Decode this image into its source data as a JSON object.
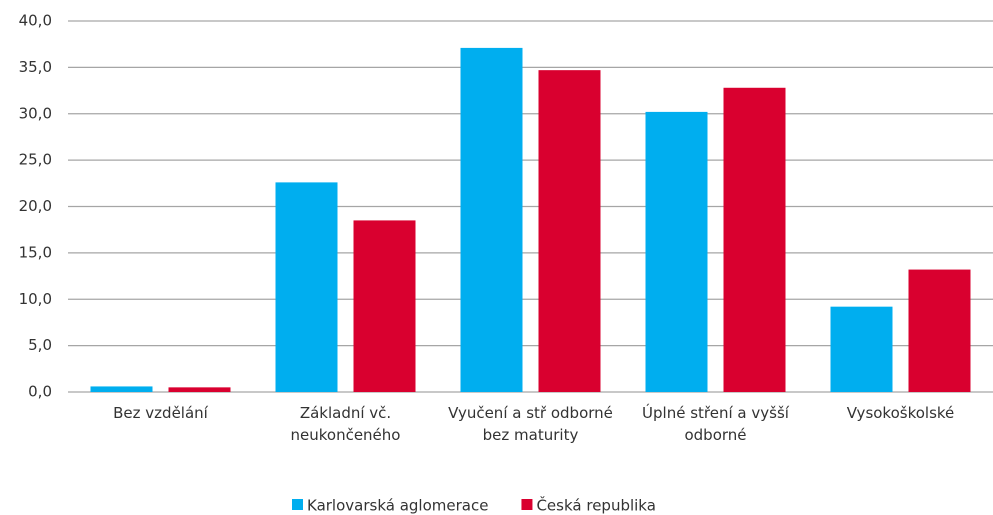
{
  "chart_data": {
    "type": "bar",
    "categories": [
      "Bez vzdělání",
      "Základní vč. neukončeného",
      "Vyučení a stř odborné bez maturity",
      "Úplné stření a vyšší odborné",
      "Vysokoškolské"
    ],
    "series": [
      {
        "name": "Karlovarská aglomerace",
        "color": "#00aeef",
        "values": [
          0.6,
          22.6,
          37.1,
          30.2,
          9.2
        ]
      },
      {
        "name": "Česká republika",
        "color": "#d9002f",
        "values": [
          0.5,
          18.5,
          34.7,
          32.8,
          13.2
        ]
      }
    ],
    "ylim": [
      0,
      40
    ],
    "yticks": [
      {
        "value": 0,
        "label": "0,0"
      },
      {
        "value": 5,
        "label": "5,0"
      },
      {
        "value": 10,
        "label": "10,0"
      },
      {
        "value": 15,
        "label": "15,0"
      },
      {
        "value": 20,
        "label": "20,0"
      },
      {
        "value": 25,
        "label": "25,0"
      },
      {
        "value": 30,
        "label": "30,0"
      },
      {
        "value": 35,
        "label": "35,0"
      },
      {
        "value": 40,
        "label": "40,0"
      }
    ],
    "grid": true,
    "legend": "bottom"
  }
}
